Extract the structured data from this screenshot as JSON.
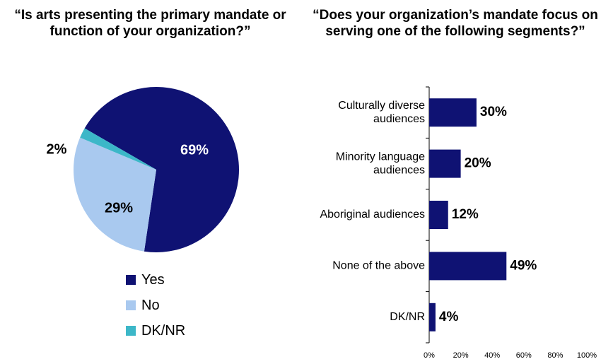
{
  "chart_data": [
    {
      "type": "pie",
      "title": "“Is arts presenting the primary mandate or function of your organization?”",
      "slices": [
        {
          "label": "Yes",
          "value": 69,
          "display": "69%",
          "color": "#0f1273"
        },
        {
          "label": "No",
          "value": 29,
          "display": "29%",
          "color": "#a9c9ef"
        },
        {
          "label": "DK/NR",
          "value": 2,
          "display": "2%",
          "color": "#3cb7c8"
        }
      ],
      "legend": "bottom"
    },
    {
      "type": "bar",
      "orientation": "horizontal",
      "title": "“Does your organization’s mandate focus on serving one of the following segments?”",
      "categories": [
        "Culturally diverse audiences",
        "Minority language audiences",
        "Aboriginal audiences",
        "None of the above",
        "DK/NR"
      ],
      "category_lines": [
        [
          "Culturally diverse",
          "audiences"
        ],
        [
          "Minority language",
          "audiences"
        ],
        [
          "Aboriginal audiences"
        ],
        [
          "None of the above"
        ],
        [
          "DK/NR"
        ]
      ],
      "values": [
        30,
        20,
        12,
        49,
        4
      ],
      "value_labels": [
        "30%",
        "20%",
        "12%",
        "49%",
        "4%"
      ],
      "color": "#0f1273",
      "xlim": [
        0,
        100
      ],
      "xticks": [
        "0%",
        "20%",
        "40%",
        "60%",
        "80%",
        "100%"
      ],
      "grid": false
    }
  ]
}
